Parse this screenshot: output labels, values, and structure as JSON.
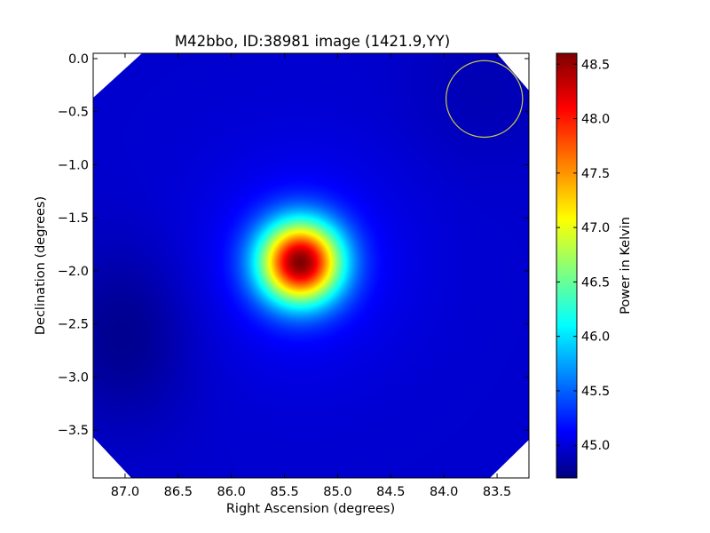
{
  "chart_data": {
    "type": "heatmap",
    "title": "M42bbo, ID:38981 image (1421.9,YY)",
    "xlabel": "Right Ascension (degrees)",
    "ylabel": "Declination (degrees)",
    "colorbar_label": "Power in Kelvin",
    "colormap": "jet",
    "xlim": [
      87.3,
      83.2
    ],
    "ylim": [
      -3.95,
      0.05
    ],
    "x_ticks": [
      87.0,
      86.5,
      86.0,
      85.5,
      85.0,
      84.5,
      84.0,
      83.5
    ],
    "x_tick_labels": [
      "87.0",
      "86.5",
      "86.0",
      "85.5",
      "85.0",
      "84.5",
      "84.0",
      "83.5"
    ],
    "y_ticks": [
      0.0,
      -0.5,
      -1.0,
      -1.5,
      -2.0,
      -2.5,
      -3.0,
      -3.5
    ],
    "y_tick_labels": [
      "0.0",
      "−0.5",
      "−1.0",
      "−1.5",
      "−2.0",
      "−2.5",
      "−3.0",
      "−3.5"
    ],
    "colorbar_range": [
      44.7,
      48.6
    ],
    "colorbar_ticks": [
      45.0,
      45.5,
      46.0,
      46.5,
      47.0,
      47.5,
      48.0,
      48.5
    ],
    "colorbar_tick_labels": [
      "45.0",
      "45.5",
      "46.0",
      "46.5",
      "47.0",
      "47.5",
      "48.0",
      "48.5"
    ],
    "peak": {
      "ra": 85.35,
      "dec": -1.92,
      "value": 48.6
    },
    "background_level": 45.0,
    "low_region": {
      "ra": 87.0,
      "dec": -2.6,
      "value": 44.75
    },
    "beam_circle": {
      "ra": 83.62,
      "dec": -0.38,
      "radius_deg": 0.36,
      "color": "#cccc44"
    },
    "grid": false
  }
}
